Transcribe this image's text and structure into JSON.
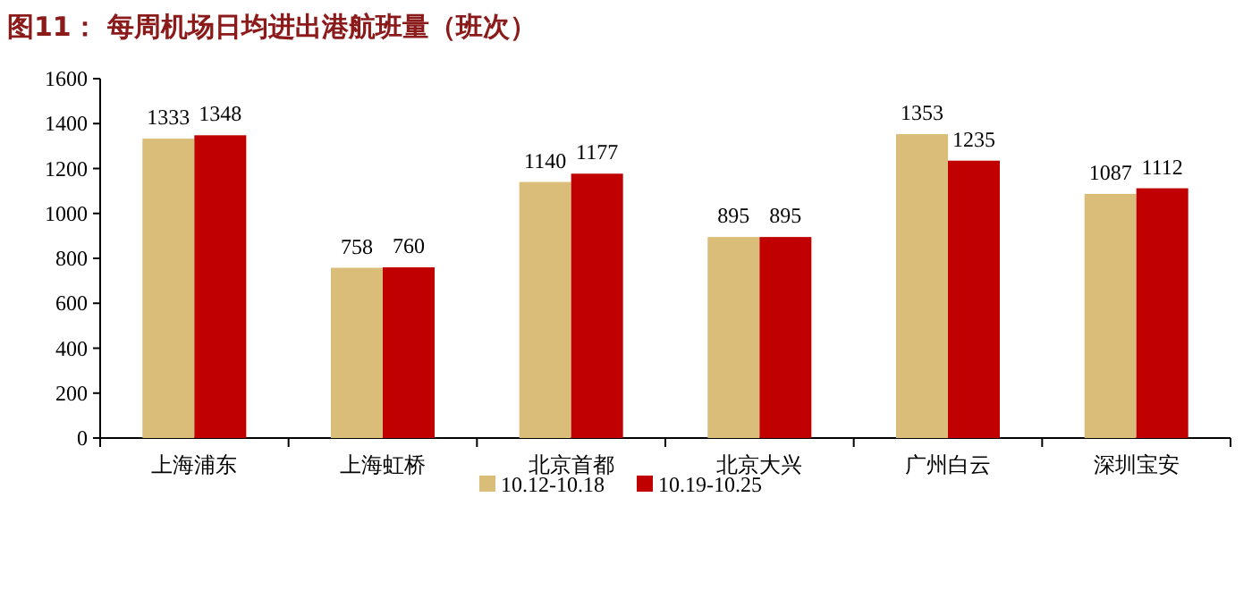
{
  "chart_data": {
    "type": "bar",
    "title": "图11：  每周机场日均进出港航班量（班次）",
    "categories": [
      "上海浦东",
      "上海虹桥",
      "北京首都",
      "北京大兴",
      "广州白云",
      "深圳宝安"
    ],
    "series": [
      {
        "name": "10.12-10.18",
        "color": "#d9bd78",
        "values": [
          1333,
          758,
          1140,
          895,
          1353,
          1087
        ]
      },
      {
        "name": "10.19-10.25",
        "color": "#c00000",
        "values": [
          1348,
          760,
          1177,
          895,
          1235,
          1112
        ]
      }
    ],
    "ylim": [
      0,
      1600
    ],
    "yticks": [
      0,
      200,
      400,
      600,
      800,
      1000,
      1200,
      1400,
      1600
    ],
    "data_labels": true,
    "grid": false,
    "legend": "bottom"
  }
}
